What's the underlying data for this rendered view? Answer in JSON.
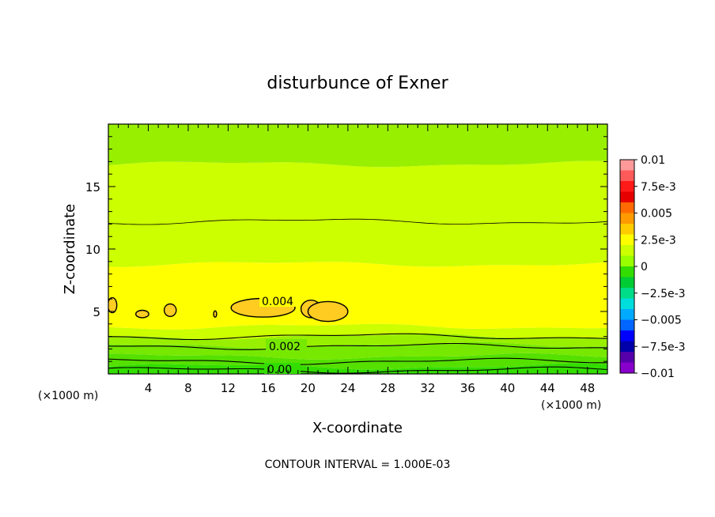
{
  "chart_data": {
    "type": "contour",
    "title": "disturbunce of Exner",
    "xlabel": "X-coordinate",
    "ylabel": "Z-coordinate",
    "x_unit": "(×1000 m)",
    "y_unit": "(×1000 m)",
    "footer": "CONTOUR INTERVAL = 1.000E-03",
    "xlim": [
      0,
      50
    ],
    "ylim": [
      0,
      20
    ],
    "x_ticks": [
      "4",
      "8",
      "12",
      "16",
      "20",
      "24",
      "28",
      "32",
      "36",
      "40",
      "44",
      "48"
    ],
    "y_ticks": [
      "5",
      "10",
      "15"
    ],
    "contour_labels": [
      "0.004",
      "0.002",
      "0.00"
    ],
    "colorbar": {
      "labels": [
        "0.01",
        "7.5e-3",
        "0.005",
        "2.5e-3",
        "0",
        "−2.5e-3",
        "−0.005",
        "−7.5e-3",
        "−0.01"
      ],
      "colors": [
        "#ff9a9a",
        "#ff5a5a",
        "#ff1a1a",
        "#e60000",
        "#ff6a00",
        "#ff9a00",
        "#ffcc00",
        "#ffff00",
        "#ccff00",
        "#99ff00",
        "#33dd00",
        "#00cc33",
        "#00dd88",
        "#00dddd",
        "#00aaff",
        "#0066ff",
        "#0000ff",
        "#0000aa",
        "#5500aa",
        "#8800cc"
      ]
    },
    "bands": [
      {
        "z_from": 0.0,
        "z_to": 0.6,
        "color": "#33dd00"
      },
      {
        "z_from": 0.6,
        "z_to": 1.4,
        "color": "#55e000"
      },
      {
        "z_from": 1.4,
        "z_to": 2.3,
        "color": "#77e800"
      },
      {
        "z_from": 2.3,
        "z_to": 3.0,
        "color": "#99ef00"
      },
      {
        "z_from": 3.0,
        "z_to": 3.8,
        "color": "#ccff00"
      },
      {
        "z_from": 3.8,
        "z_to": 8.8,
        "color": "#ffff00"
      },
      {
        "z_from": 8.8,
        "z_to": 16.8,
        "color": "#ccff00"
      },
      {
        "z_from": 16.8,
        "z_to": 20.0,
        "color": "#99ef00"
      }
    ],
    "contour_lines_z": [
      0.3,
      1.0,
      2.2,
      3.0,
      12.2
    ],
    "blobs": [
      {
        "cx": 0.4,
        "cz": 5.5,
        "rx": 0.45,
        "rz": 0.6
      },
      {
        "cx": 3.4,
        "cz": 4.8,
        "rx": 0.65,
        "rz": 0.3
      },
      {
        "cx": 6.2,
        "cz": 5.1,
        "rx": 0.6,
        "rz": 0.5
      },
      {
        "cx": 10.7,
        "cz": 4.8,
        "rx": 0.15,
        "rz": 0.25
      },
      {
        "cx": 15.5,
        "cz": 5.3,
        "rx": 3.2,
        "rz": 0.75
      },
      {
        "cx": 20.3,
        "cz": 5.2,
        "rx": 1.0,
        "rz": 0.7
      },
      {
        "cx": 22.0,
        "cz": 5.0,
        "rx": 2.0,
        "rz": 0.8
      }
    ]
  }
}
